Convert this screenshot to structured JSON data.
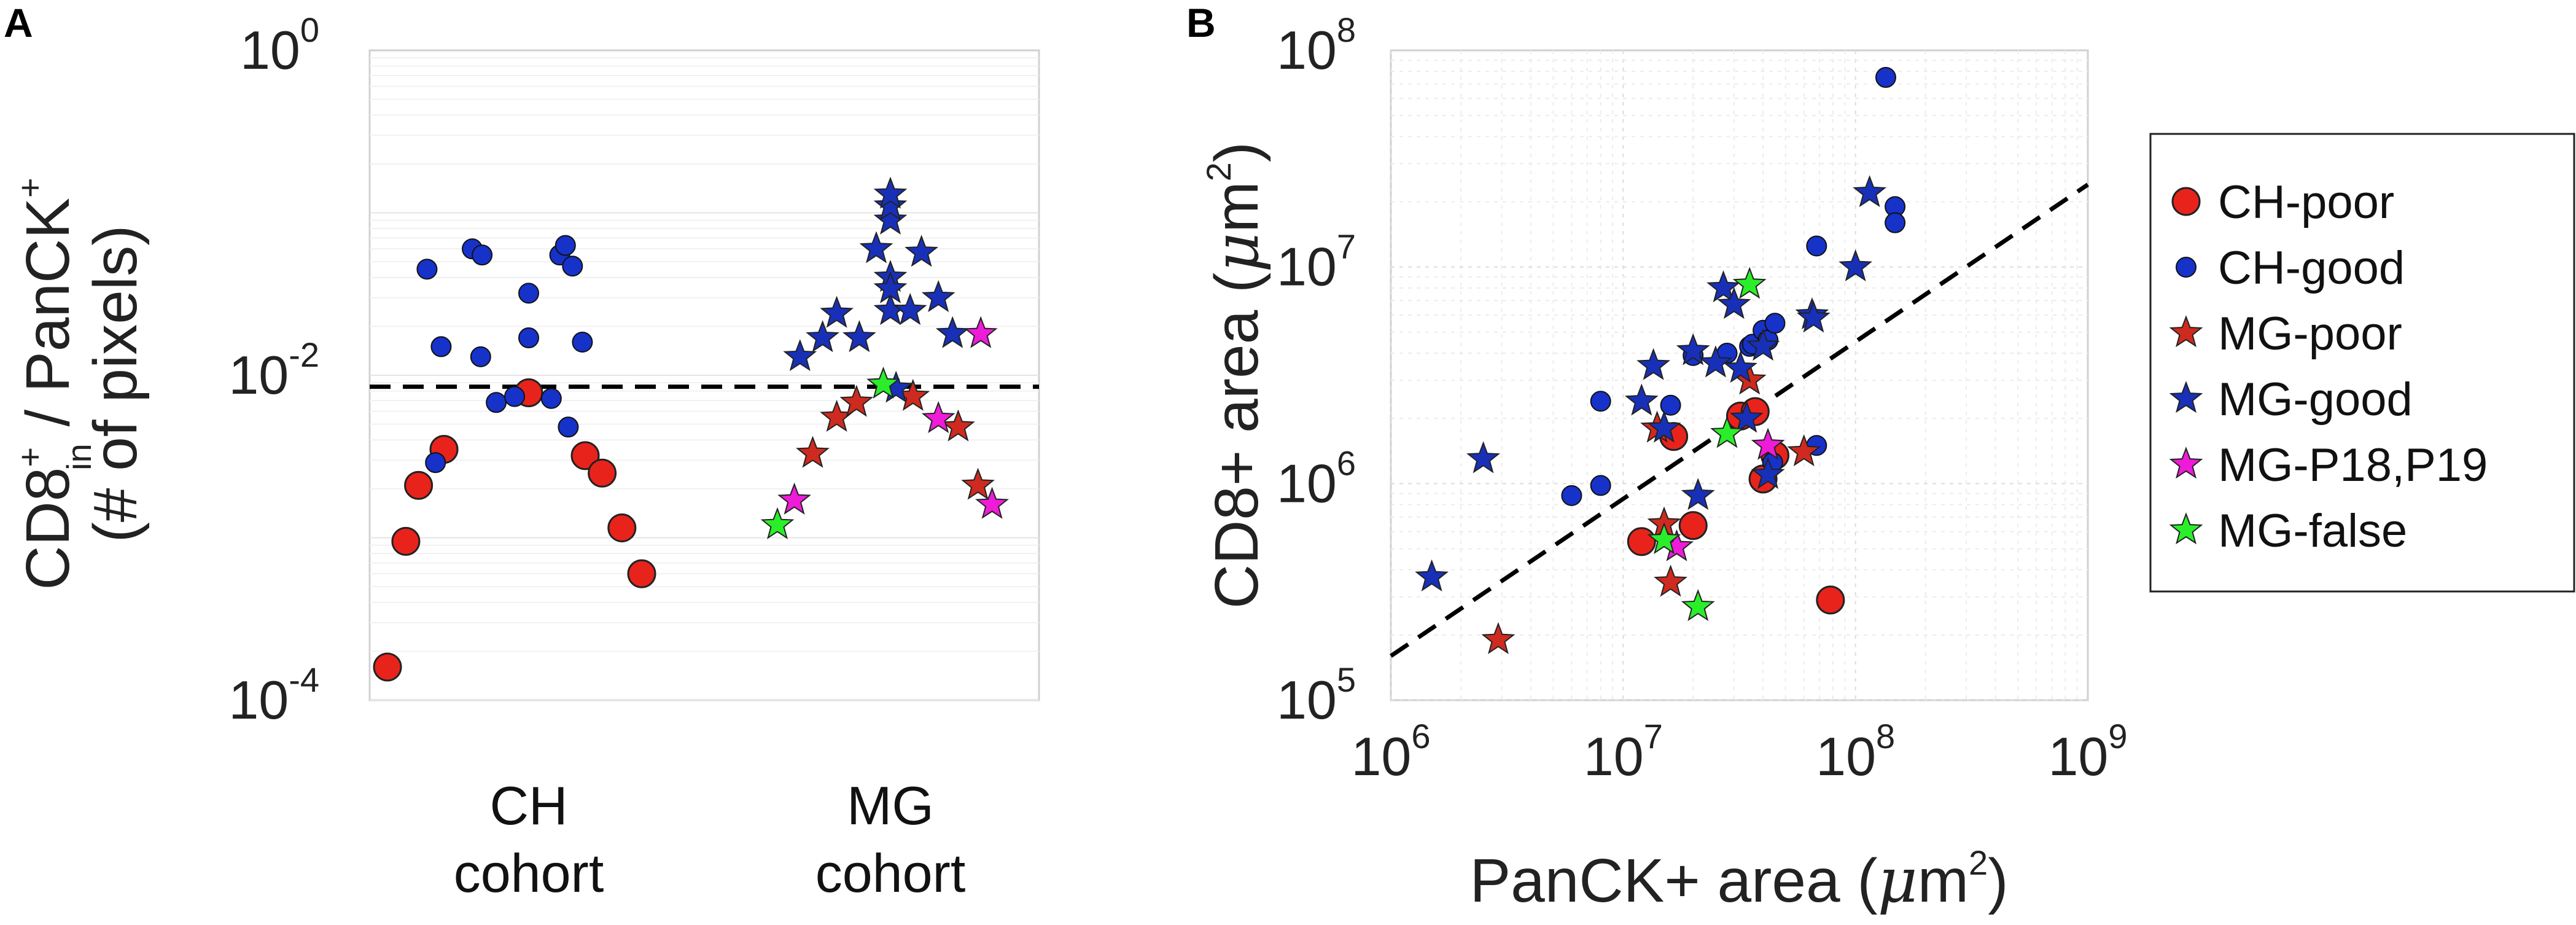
{
  "chart_data": [
    {
      "panel": "A",
      "type": "scatter",
      "yscale": "log",
      "ylim": [
        0.0001,
        1
      ],
      "y_ticks": [
        {
          "value": 1,
          "base": "10",
          "exp": "0"
        },
        {
          "value": 0.01,
          "base": "10",
          "exp": "-2"
        },
        {
          "value": 0.0001,
          "base": "10",
          "exp": "-4"
        }
      ],
      "ylabel_parts": {
        "pre": "CD8",
        "sup": "+",
        "sub": "in",
        "mid": " / PanCK",
        "sup2": "+"
      },
      "ylabel_line2": "(# of pixels)",
      "categories": [
        {
          "line1": "CH",
          "line2": "cohort"
        },
        {
          "line1": "MG",
          "line2": "cohort"
        }
      ],
      "threshold": 0.0085,
      "series": [
        {
          "name": "CH-poor",
          "group": 0,
          "marker": "circle-large",
          "color": "#e8231c",
          "points": [
            [
              -1.0,
              0.00016
            ],
            [
              -0.87,
              0.00095
            ],
            [
              -0.78,
              0.0021
            ],
            [
              -0.6,
              0.0035
            ],
            [
              0.0,
              0.0078
            ],
            [
              0.4,
              0.0032
            ],
            [
              0.52,
              0.0025
            ],
            [
              0.66,
              0.00115
            ],
            [
              0.8,
              0.0006
            ]
          ]
        },
        {
          "name": "CH-good",
          "group": 0,
          "marker": "circle",
          "color": "#1632c9",
          "points": [
            [
              -0.72,
              0.045
            ],
            [
              -0.62,
              0.015
            ],
            [
              -0.66,
              0.0029
            ],
            [
              -0.4,
              0.06
            ],
            [
              -0.33,
              0.055
            ],
            [
              -0.34,
              0.013
            ],
            [
              -0.23,
              0.0068
            ],
            [
              -0.1,
              0.0074
            ],
            [
              0.0,
              0.017
            ],
            [
              0.0,
              0.032
            ],
            [
              0.16,
              0.0072
            ],
            [
              0.22,
              0.055
            ],
            [
              0.26,
              0.063
            ],
            [
              0.31,
              0.047
            ],
            [
              0.28,
              0.0048
            ],
            [
              0.38,
              0.016
            ]
          ]
        },
        {
          "name": "MG-poor",
          "group": 1,
          "marker": "star",
          "color": "#cf2a1f",
          "points": [
            [
              -0.55,
              0.0033
            ],
            [
              -0.38,
              0.0055
            ],
            [
              -0.24,
              0.0068
            ],
            [
              0.16,
              0.0074
            ],
            [
              0.48,
              0.0048
            ],
            [
              0.62,
              0.0021
            ]
          ]
        },
        {
          "name": "MG-good",
          "group": 1,
          "marker": "star",
          "color": "#1830b8",
          "points": [
            [
              -0.64,
              0.013
            ],
            [
              -0.48,
              0.017
            ],
            [
              -0.38,
              0.024
            ],
            [
              -0.22,
              0.017
            ],
            [
              -0.1,
              0.06
            ],
            [
              0.0,
              0.025
            ],
            [
              0.0,
              0.04
            ],
            [
              0.0,
              0.09
            ],
            [
              0.0,
              0.11
            ],
            [
              0.0,
              0.13
            ],
            [
              0.0,
              0.034
            ],
            [
              0.14,
              0.025
            ],
            [
              0.22,
              0.057
            ],
            [
              0.34,
              0.03
            ],
            [
              0.44,
              0.018
            ],
            [
              0.04,
              0.0083
            ]
          ]
        },
        {
          "name": "MG-P18,P19",
          "group": 1,
          "marker": "star",
          "color": "#ee1bd8",
          "points": [
            [
              -0.68,
              0.0017
            ],
            [
              0.34,
              0.0054
            ],
            [
              0.64,
              0.018
            ],
            [
              0.72,
              0.0016
            ]
          ]
        },
        {
          "name": "MG-false",
          "group": 1,
          "marker": "star",
          "color": "#2bee2b",
          "points": [
            [
              -0.8,
              0.0012
            ],
            [
              -0.05,
              0.0088
            ]
          ]
        }
      ]
    },
    {
      "panel": "B",
      "type": "scatter",
      "xscale": "log",
      "yscale": "log",
      "xlim": [
        1000000,
        1000000000
      ],
      "ylim": [
        100000,
        100000000
      ],
      "x_ticks": [
        {
          "value": 1000000,
          "base": "10",
          "exp": "6"
        },
        {
          "value": 10000000,
          "base": "10",
          "exp": "7"
        },
        {
          "value": 100000000,
          "base": "10",
          "exp": "8"
        },
        {
          "value": 1000000000,
          "base": "10",
          "exp": "9"
        }
      ],
      "y_ticks": [
        {
          "value": 100000,
          "base": "10",
          "exp": "5"
        },
        {
          "value": 1000000,
          "base": "10",
          "exp": "6"
        },
        {
          "value": 10000000,
          "base": "10",
          "exp": "7"
        },
        {
          "value": 100000000,
          "base": "10",
          "exp": "8"
        }
      ],
      "xlabel_parts": {
        "pre": "PanCK+ area (",
        "mu": "μ",
        "unit": "m",
        "sup": "2",
        "post": ")"
      },
      "ylabel_parts": {
        "pre": "CD8+ area (",
        "mu": "μ",
        "unit": "m",
        "sup": "2",
        "post": ")"
      },
      "fit_line": {
        "x": [
          1000000,
          1000000000
        ],
        "y": [
          160000,
          24000000
        ]
      },
      "grid": true,
      "legend_position": "outside-right",
      "series": [
        {
          "name": "CH-poor",
          "marker": "circle-large",
          "color": "#e8231c",
          "points": [
            [
              12000000,
              540000
            ],
            [
              16500000,
              1650000
            ],
            [
              20000000,
              640000
            ],
            [
              32000000,
              2050000
            ],
            [
              37000000,
              2150000
            ],
            [
              40000000,
              1050000
            ],
            [
              45000000,
              1350000
            ],
            [
              78000000,
              290000
            ]
          ]
        },
        {
          "name": "CH-good",
          "marker": "circle",
          "color": "#1632c9",
          "points": [
            [
              6000000,
              880000
            ],
            [
              8000000,
              980000
            ],
            [
              8000000,
              2400000
            ],
            [
              16000000,
              2300000
            ],
            [
              20000000,
              3900000
            ],
            [
              28000000,
              4000000
            ],
            [
              35000000,
              4300000
            ],
            [
              36000000,
              4400000
            ],
            [
              40000000,
              5100000
            ],
            [
              42000000,
              4600000
            ],
            [
              44000000,
              1250000
            ],
            [
              45000000,
              5500000
            ],
            [
              68000000,
              1500000
            ],
            [
              68000000,
              12500000
            ],
            [
              135000000,
              75000000
            ],
            [
              148000000,
              19000000
            ],
            [
              148000000,
              16000000
            ]
          ]
        },
        {
          "name": "MG-poor",
          "marker": "star",
          "color": "#cf2a1f",
          "points": [
            [
              2900000,
              190000
            ],
            [
              14000000,
              1800000
            ],
            [
              15000000,
              650000
            ],
            [
              16000000,
              350000
            ],
            [
              35000000,
              3000000
            ],
            [
              60000000,
              1400000
            ]
          ]
        },
        {
          "name": "MG-good",
          "marker": "star",
          "color": "#1830b8",
          "points": [
            [
              1500000,
              370000
            ],
            [
              2500000,
              1300000
            ],
            [
              12000000,
              2400000
            ],
            [
              13500000,
              3500000
            ],
            [
              15000000,
              1800000
            ],
            [
              20000000,
              4100000
            ],
            [
              21000000,
              880000
            ],
            [
              25000000,
              3600000
            ],
            [
              27000000,
              8000000
            ],
            [
              30000000,
              6700000
            ],
            [
              32000000,
              3400000
            ],
            [
              34000000,
              2000000
            ],
            [
              40000000,
              4300000
            ],
            [
              42000000,
              1100000
            ],
            [
              65000000,
              6000000
            ],
            [
              66000000,
              5800000
            ],
            [
              100000000,
              10000000
            ],
            [
              115000000,
              22000000
            ]
          ]
        },
        {
          "name": "MG-P18,P19",
          "marker": "star",
          "color": "#ee1bd8",
          "points": [
            [
              17000000,
              510000
            ],
            [
              42000000,
              1500000
            ]
          ]
        },
        {
          "name": "MG-false",
          "marker": "star",
          "color": "#2bee2b",
          "points": [
            [
              15000000,
              550000
            ],
            [
              21000000,
              270000
            ],
            [
              28000000,
              1700000
            ],
            [
              35000000,
              8300000
            ]
          ]
        }
      ]
    }
  ]
}
